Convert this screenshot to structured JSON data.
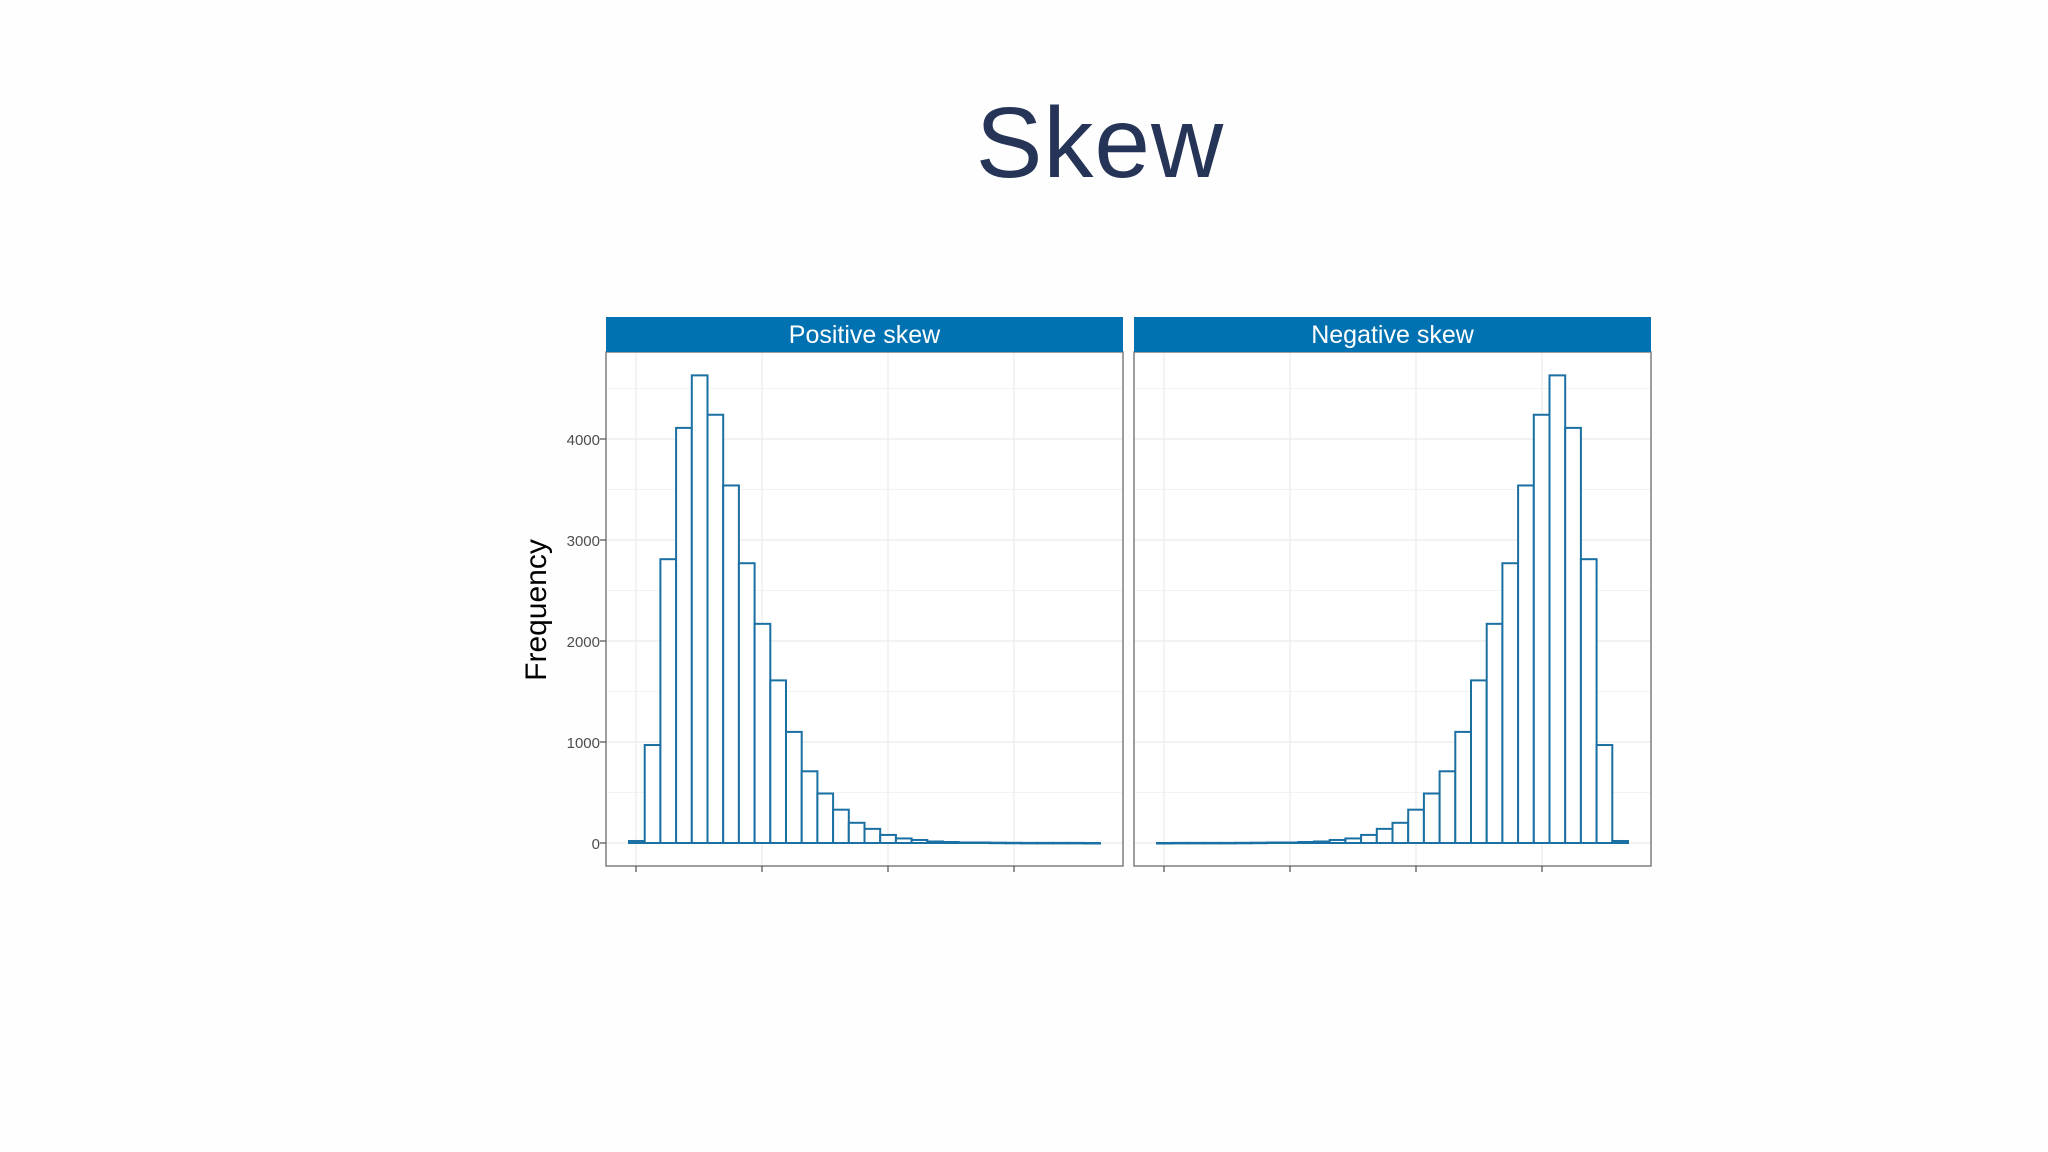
{
  "slide": {
    "title": "Skew"
  },
  "chart_data": {
    "type": "bar",
    "layout": "faceted histogram, two panels side by side",
    "ylabel": "Frequency",
    "xlabel": "",
    "ylim": [
      0,
      4650
    ],
    "y_ticks": [
      "0",
      "1000",
      "2000",
      "3000",
      "4000"
    ],
    "y_tick_values": [
      0,
      1000,
      2000,
      3000,
      4000
    ],
    "x_ticks": 4,
    "bar_stroke_color": "#1a6fa3",
    "bar_fill_color": "#ffffff",
    "strip_color": "#0072b2",
    "grid": true,
    "panels": [
      {
        "label": "Positive skew",
        "bin_count": 30,
        "values": [
          20,
          970,
          2810,
          4110,
          4630,
          4240,
          3540,
          2770,
          2170,
          1610,
          1100,
          710,
          490,
          330,
          200,
          140,
          80,
          45,
          30,
          15,
          10,
          5,
          5,
          3,
          2,
          1,
          1,
          1,
          1,
          0
        ]
      },
      {
        "label": "Negative skew",
        "bin_count": 30,
        "values": [
          0,
          1,
          1,
          1,
          1,
          2,
          3,
          5,
          5,
          10,
          15,
          30,
          45,
          80,
          140,
          200,
          330,
          490,
          710,
          1100,
          1610,
          2170,
          2770,
          3540,
          4240,
          4630,
          4110,
          2810,
          970,
          20
        ]
      }
    ]
  }
}
